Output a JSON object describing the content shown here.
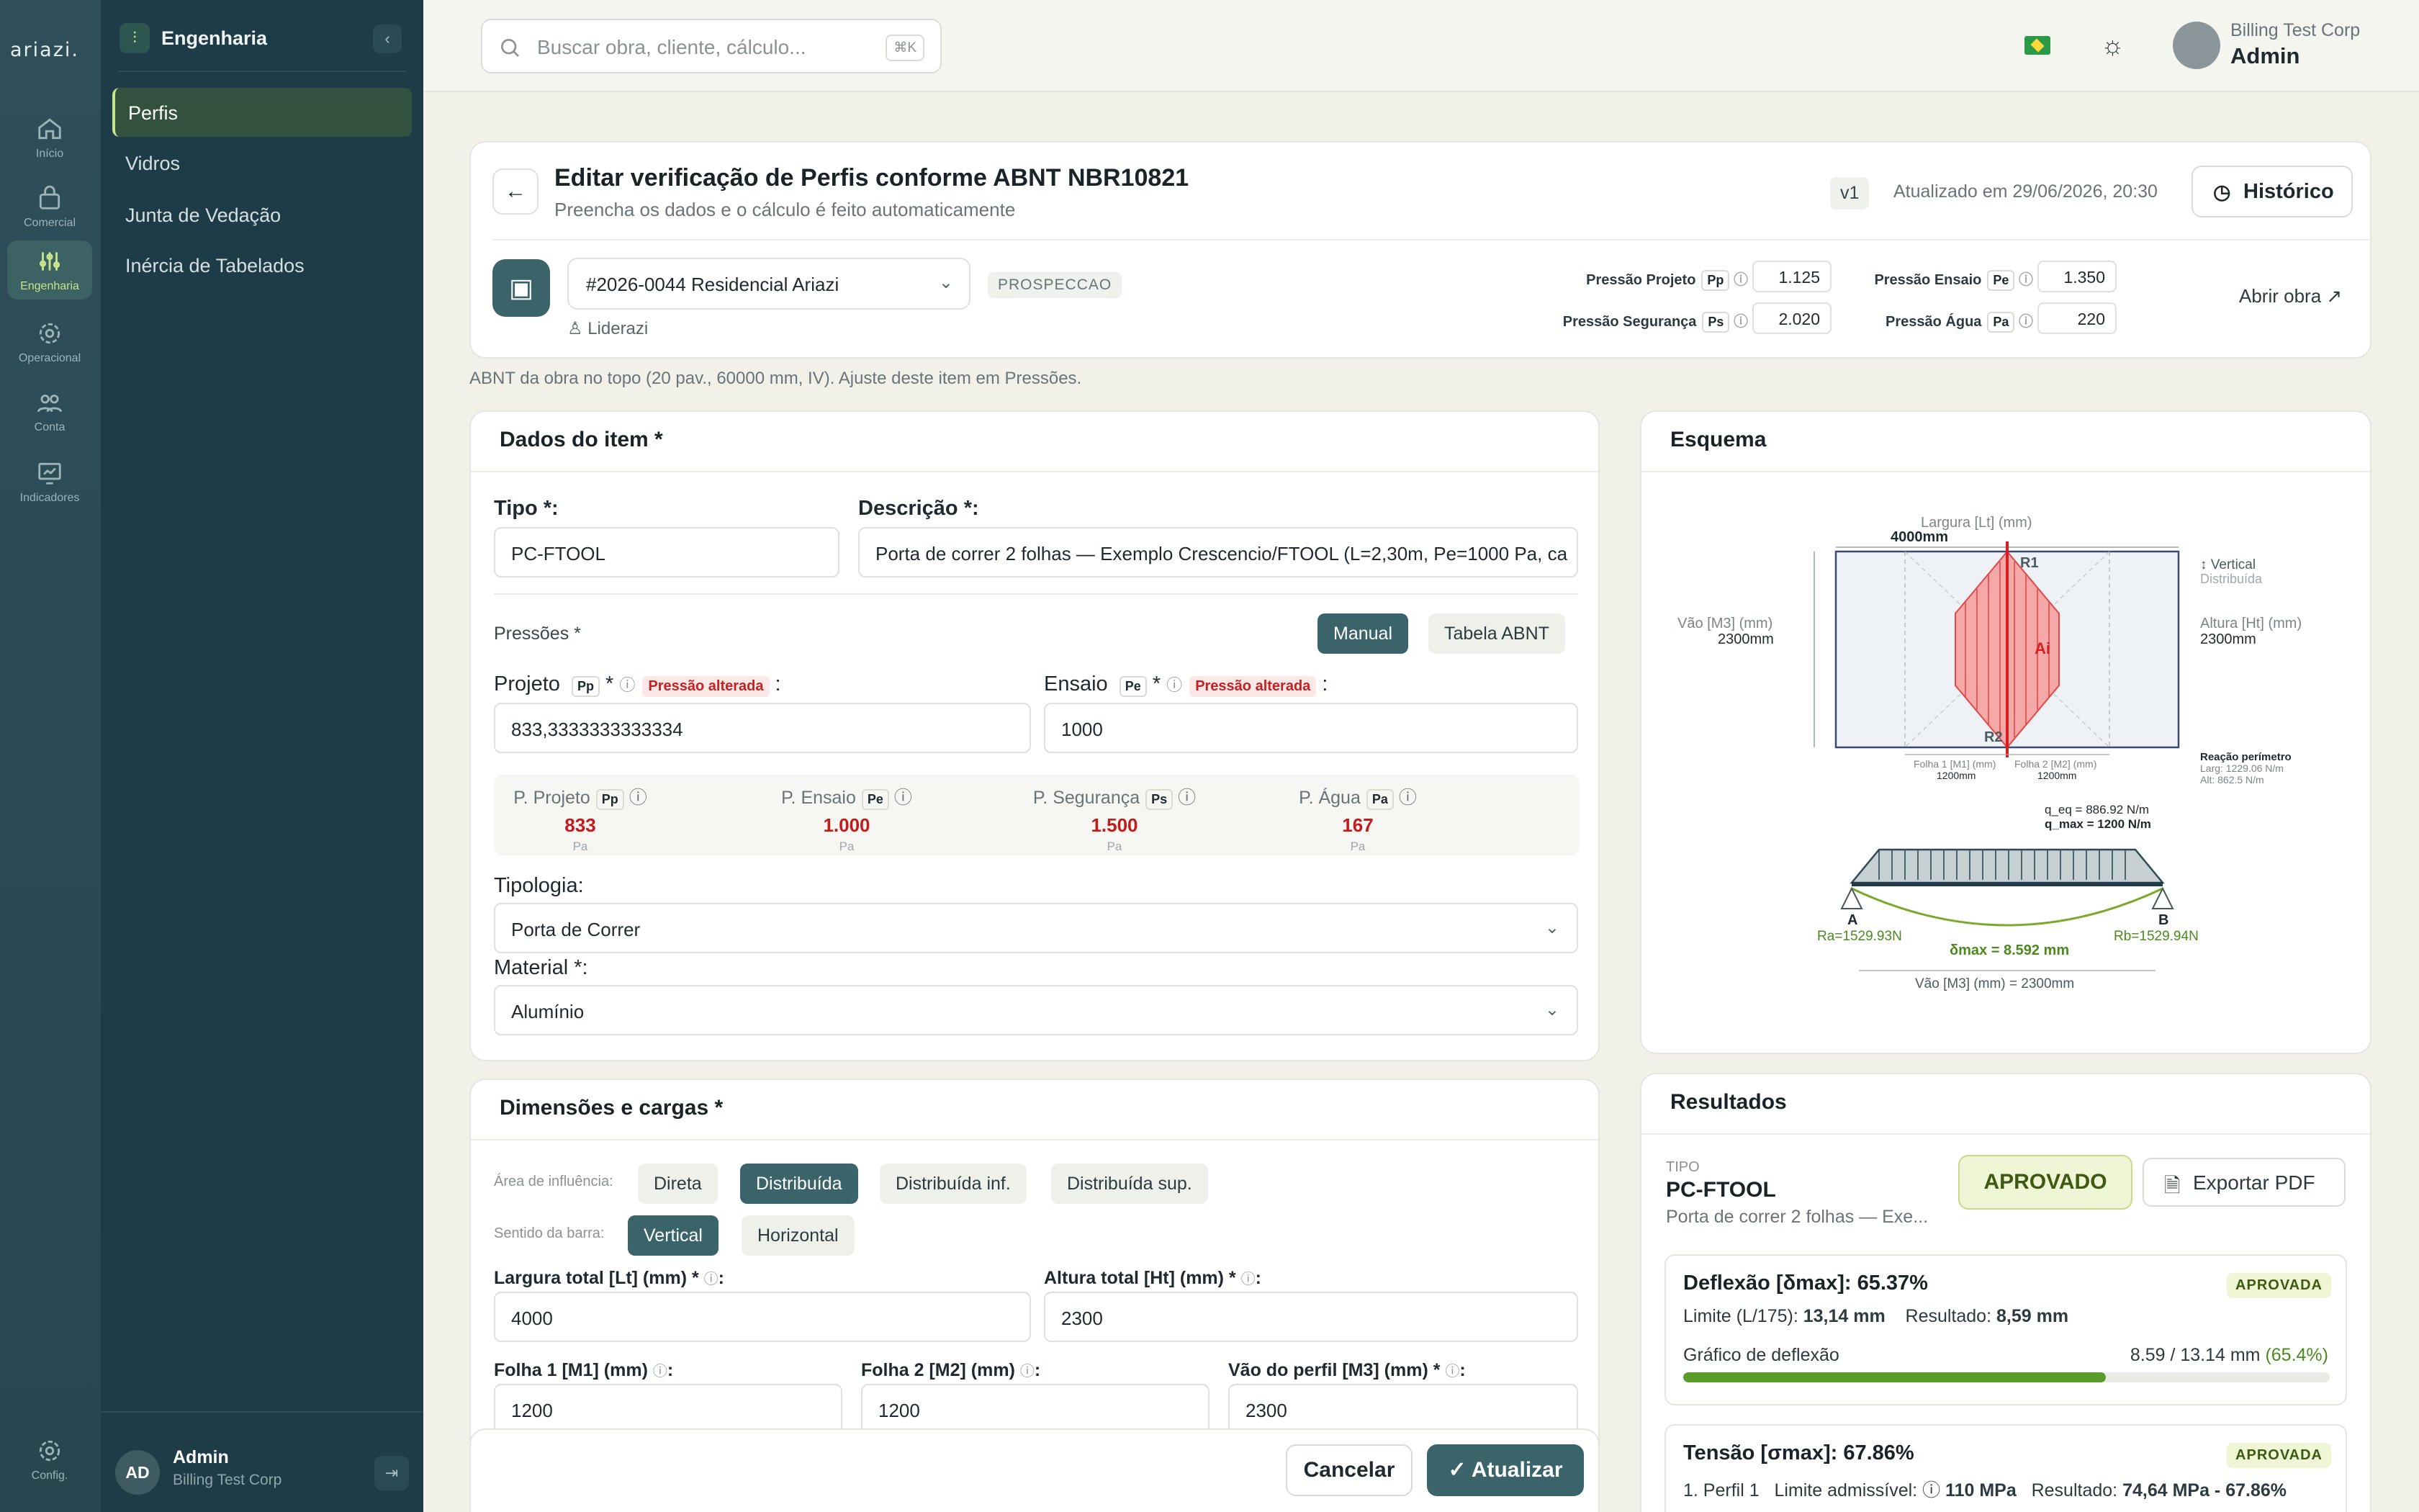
{
  "brand": {
    "logo": "ariazi."
  },
  "rail": [
    {
      "label": "Início"
    },
    {
      "label": "Comercial"
    },
    {
      "label": "Engenharia"
    },
    {
      "label": "Operacional"
    },
    {
      "label": "Conta"
    },
    {
      "label": "Indicadores"
    },
    {
      "label": "Config."
    }
  ],
  "sidebar": {
    "title": "Engenharia",
    "items": [
      "Perfis",
      "Vidros",
      "Junta de Vedação",
      "Inércia de Tabelados"
    ],
    "user": {
      "initials": "AD",
      "name": "Admin",
      "company": "Billing Test Corp"
    }
  },
  "topbar": {
    "search_placeholder": "Buscar obra, cliente, cálculo...",
    "shortcut": "⌘K",
    "company": "Billing Test Corp",
    "user": "Admin"
  },
  "header": {
    "title": "Editar verificação de Perfis conforme ABNT NBR10821",
    "subtitle": "Preencha os dados e o cálculo é feito automaticamente",
    "version": "v1",
    "updated": "Atualizado em 29/06/2026, 20:30",
    "history": "Histórico",
    "obra": "#2026-0044 Residencial Ariazi",
    "stage": "PROSPECCAO",
    "leader": "Liderazi",
    "open_obra": "Abrir obra ↗",
    "pressures": [
      {
        "label": "Pressão Projeto",
        "tag": "Pp",
        "value": "1.125"
      },
      {
        "label": "Pressão Ensaio",
        "tag": "Pe",
        "value": "1.350"
      },
      {
        "label": "Pressão Segurança",
        "tag": "Ps",
        "value": "2.020"
      },
      {
        "label": "Pressão Água",
        "tag": "Pa",
        "value": "220"
      }
    ]
  },
  "note": "ABNT da obra no topo (20 pav., 60000 mm, IV). Ajuste deste item em Pressões.",
  "item": {
    "title": "Dados do item *",
    "tipo_label": "Tipo *:",
    "tipo": "PC-FTOOL",
    "desc_label": "Descrição *:",
    "desc": "Porta de correr 2 folhas — Exemplo Crescencio/FTOOL (L=2,30m, Pe=1000 Pa, ca",
    "pressoes_label": "Pressões *",
    "mode_manual": "Manual",
    "mode_tabela": "Tabela ABNT",
    "projeto_label": "Projeto",
    "projeto_tag": "Pp",
    "ensaio_label": "Ensaio",
    "ensaio_tag": "Pe",
    "altered": "Pressão alterada",
    "projeto_val": "833,3333333333334",
    "ensaio_val": "1000",
    "cards": [
      {
        "label": "P. Projeto",
        "tag": "Pp",
        "value": "833",
        "unit": "Pa"
      },
      {
        "label": "P. Ensaio",
        "tag": "Pe",
        "value": "1.000",
        "unit": "Pa"
      },
      {
        "label": "P. Segurança",
        "tag": "Ps",
        "value": "1.500",
        "unit": "Pa"
      },
      {
        "label": "P. Água",
        "tag": "Pa",
        "value": "167",
        "unit": "Pa"
      }
    ],
    "tipologia_label": "Tipologia:",
    "tipologia": "Porta de Correr",
    "material_label": "Material *:",
    "material": "Alumínio"
  },
  "dims": {
    "title": "Dimensões e cargas *",
    "area_label": "Área de influência:",
    "area_opts": [
      "Direta",
      "Distribuída",
      "Distribuída inf.",
      "Distribuída sup."
    ],
    "sentido_label": "Sentido da barra:",
    "sentido_opts": [
      "Vertical",
      "Horizontal"
    ],
    "largura_label": "Largura total [Lt] (mm) *",
    "largura": "4000",
    "altura_label": "Altura total [Ht] (mm) *",
    "altura": "2300",
    "folha1_label": "Folha 1 [M1] (mm)",
    "folha1": "1200",
    "folha2_label": "Folha 2 [M2] (mm)",
    "folha2": "1200",
    "vao_label": "Vão do perfil [M3] (mm) *",
    "vao": "2300"
  },
  "esquema": {
    "title": "Esquema",
    "largura_lbl": "Largura [Lt] (mm)",
    "largura_val": "4000mm",
    "vao_lbl": "Vão [M3] (mm)",
    "vao_val": "2300mm",
    "altura_lbl": "Altura [Ht] (mm)",
    "altura_val": "2300mm",
    "vertical": "↕ Vertical",
    "distribuida": "Distribuída",
    "r1": "R1",
    "r2": "R2",
    "ai": "Ai",
    "folha1": "Folha 1 [M1] (mm)",
    "folha1_v": "1200mm",
    "folha2": "Folha 2 [M2] (mm)",
    "folha2_v": "1200mm",
    "reacao": "Reação perímetro",
    "larg": "Larg: 1229.06 N/m",
    "alt": "Alt: 862.5 N/m",
    "qeq": "q_eq = 886.92 N/m",
    "qmax": "q_max = 1200 N/m",
    "a": "A",
    "b": "B",
    "ra": "Ra=1529.93N",
    "rb": "Rb=1529.94N",
    "dmax": "δmax = 8.592 mm",
    "vao_bottom": "Vão [M3] (mm) = 2300mm"
  },
  "results": {
    "title": "Resultados",
    "tipo_lbl": "TIPO",
    "tipo": "PC-FTOOL",
    "desc": "Porta de correr 2 folhas — Exe...",
    "status": "APROVADO",
    "export": "Exportar PDF",
    "deflexao": {
      "title": "Deflexão [δmax]: 65.37%",
      "badge": "APROVADA",
      "limit_lbl": "Limite (L/175):",
      "limit": "13,14 mm",
      "result_lbl": "Resultado:",
      "result": "8,59 mm",
      "graph": "Gráfico de deflexão",
      "ratio": "8.59 / 13.14 mm",
      "pct": "(65.4%)",
      "fill": 0.654
    },
    "tensao": {
      "title": "Tensão [σmax]: 67.86%",
      "badge": "APROVADA",
      "perfil": "1. Perfil 1",
      "limit_lbl": "Limite admissível:",
      "limit": "110 MPa",
      "result_lbl": "Resultado:",
      "result": "74,64 MPa - 67.86%"
    }
  },
  "footer": {
    "cancel": "Cancelar",
    "update": "Atualizar"
  },
  "colors": {
    "accent": "#3a636a",
    "approved": "#5a9c2a",
    "alert": "#c42222",
    "sidebar": "#1e3c48"
  }
}
